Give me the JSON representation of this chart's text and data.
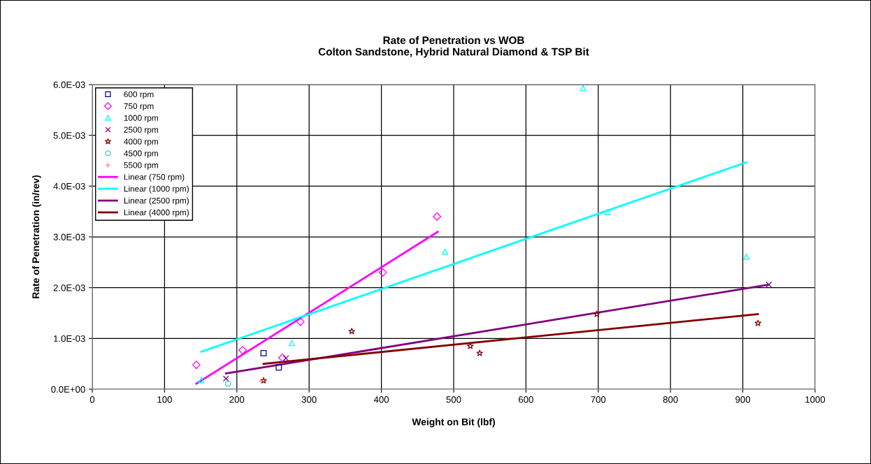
{
  "chart_data": {
    "type": "scatter",
    "title": "Rate of Penetration vs WOB\nColton Sandstone, Hybrid Natural Diamond & TSP Bit",
    "xlabel": "Weight on Bit (lbf)",
    "ylabel": "Rate of Penetration (in/rev)",
    "xlim": [
      0,
      1000
    ],
    "xticks": [
      0,
      100,
      200,
      300,
      400,
      500,
      600,
      700,
      800,
      900,
      1000
    ],
    "ylim": [
      0,
      0.006
    ],
    "yticks": [
      {
        "value": 0,
        "label": "0.0E+00"
      },
      {
        "value": 0.001,
        "label": "1.0E-03"
      },
      {
        "value": 0.002,
        "label": "2.0E-03"
      },
      {
        "value": 0.003,
        "label": "3.0E-03"
      },
      {
        "value": 0.004,
        "label": "4.0E-03"
      },
      {
        "value": 0.005,
        "label": "5.0E-03"
      },
      {
        "value": 0.006,
        "label": "6.0E-03"
      }
    ],
    "grid": true,
    "legend": "top left",
    "series": [
      {
        "name": "600 rpm",
        "color": "#000080",
        "marker": "square",
        "x": [
          237,
          258
        ],
        "values": [
          0.00071,
          0.00043
        ]
      },
      {
        "name": "750 rpm",
        "color": "#ff00ff",
        "marker": "diamond",
        "x": [
          144,
          208,
          263,
          288,
          402,
          477
        ],
        "values": [
          0.00048,
          0.00077,
          0.00062,
          0.00133,
          0.0023,
          0.0034
        ]
      },
      {
        "name": "1000 rpm",
        "color": "#00ffff",
        "marker": "triangle",
        "x": [
          151,
          276,
          488,
          679,
          713,
          905
        ],
        "values": [
          0.00018,
          0.00091,
          0.00271,
          0.00593,
          0.00349,
          0.00261
        ]
      },
      {
        "name": "2500 rpm",
        "color": "#800080",
        "marker": "cross",
        "x": [
          185,
          268,
          936
        ],
        "values": [
          0.00021,
          0.00061,
          0.00206
        ]
      },
      {
        "name": "4000 rpm",
        "color": "#800000",
        "marker": "star",
        "x": [
          237,
          359,
          523,
          536,
          698,
          921
        ],
        "values": [
          0.00017,
          0.00114,
          0.00085,
          0.00071,
          0.00148,
          0.0013
        ]
      },
      {
        "name": "4500 rpm",
        "color": "#33cccc",
        "marker": "circle",
        "x": [
          188
        ],
        "values": [
          0.00011
        ]
      },
      {
        "name": "5500 rpm",
        "color": "#ff8080",
        "marker": "plus",
        "x": [
          234
        ],
        "values": [
          0.00016
        ]
      },
      {
        "name": "Linear (750 rpm)",
        "type": "line",
        "color": "#ff00ff",
        "marker": "none",
        "x": [
          144,
          478
        ],
        "values": [
          0.00011,
          0.0031
        ]
      },
      {
        "name": "Linear (1000 rpm)",
        "type": "line",
        "color": "#00ffff",
        "marker": "none",
        "x": [
          151,
          905
        ],
        "values": [
          0.00074,
          0.00447
        ]
      },
      {
        "name": "Linear (2500 rpm)",
        "type": "line",
        "color": "#800080",
        "marker": "none",
        "x": [
          185,
          936
        ],
        "values": [
          0.00031,
          0.00206
        ]
      },
      {
        "name": "Linear (4000 rpm)",
        "type": "line",
        "color": "#800000",
        "marker": "none",
        "x": [
          237,
          921
        ],
        "values": [
          0.0005,
          0.00148
        ]
      }
    ]
  }
}
